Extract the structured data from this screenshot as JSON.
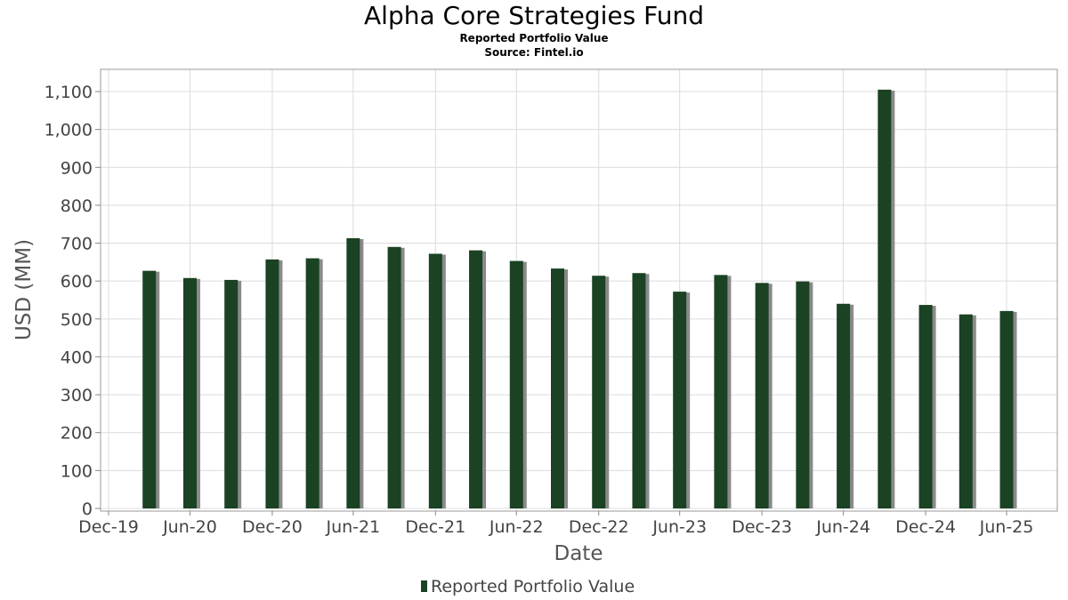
{
  "chart_data": {
    "type": "bar",
    "title": "Alpha Core Strategies Fund",
    "subtitle": "Reported Portfolio Value",
    "source": "Source: Fintel.io",
    "xlabel": "Date",
    "ylabel": "USD (MM)",
    "ylim": [
      0,
      1150
    ],
    "yticks": [
      0,
      100,
      200,
      300,
      400,
      500,
      600,
      700,
      800,
      900,
      1000,
      1100
    ],
    "ytick_labels": [
      "0",
      "100",
      "200",
      "300",
      "400",
      "500",
      "600",
      "700",
      "800",
      "900",
      "1,000",
      "1,100"
    ],
    "xticks": [
      "Dec-19",
      "Jun-20",
      "Dec-20",
      "Jun-21",
      "Dec-21",
      "Jun-22",
      "Dec-22",
      "Jun-23",
      "Dec-23",
      "Jun-24",
      "Dec-24",
      "Jun-25"
    ],
    "grid": true,
    "legend": "bottom-center",
    "series": [
      {
        "name": "Reported Portfolio Value",
        "color": "#1a4223",
        "x": [
          "2020-03-31",
          "2020-06-30",
          "2020-09-30",
          "2020-12-31",
          "2021-03-31",
          "2021-06-30",
          "2021-09-30",
          "2021-12-31",
          "2022-03-31",
          "2022-06-30",
          "2022-09-30",
          "2022-12-31",
          "2023-03-31",
          "2023-06-30",
          "2023-09-30",
          "2023-12-31",
          "2024-03-31",
          "2024-06-30",
          "2024-09-30",
          "2024-12-31",
          "2025-03-31",
          "2025-06-30"
        ],
        "values": [
          627,
          608,
          603,
          657,
          660,
          713,
          690,
          672,
          681,
          653,
          633,
          614,
          621,
          572,
          616,
          595,
          599,
          540,
          1105,
          537,
          512,
          521
        ]
      }
    ]
  }
}
